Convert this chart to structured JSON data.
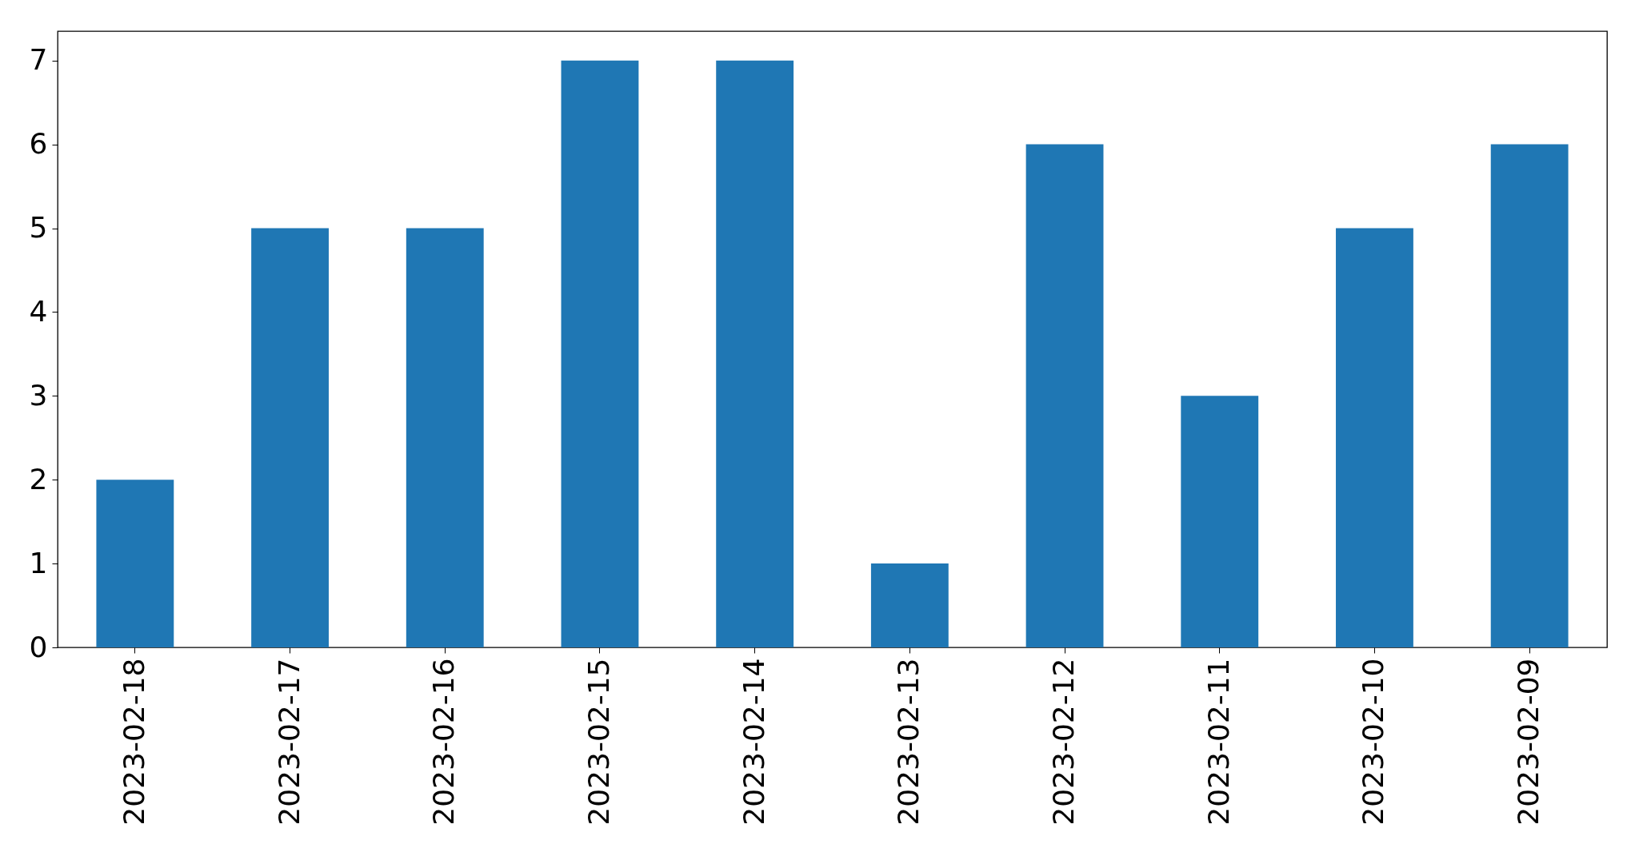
{
  "chart_data": {
    "type": "bar",
    "categories": [
      "2023-02-18",
      "2023-02-17",
      "2023-02-16",
      "2023-02-15",
      "2023-02-14",
      "2023-02-13",
      "2023-02-12",
      "2023-02-11",
      "2023-02-10",
      "2023-02-09"
    ],
    "values": [
      2,
      5,
      5,
      7,
      7,
      1,
      6,
      3,
      5,
      6
    ],
    "color": "#1f77b4",
    "ylim": [
      0,
      7.35
    ],
    "yticks": [
      0,
      1,
      2,
      3,
      4,
      5,
      6,
      7
    ],
    "grid": false
  }
}
